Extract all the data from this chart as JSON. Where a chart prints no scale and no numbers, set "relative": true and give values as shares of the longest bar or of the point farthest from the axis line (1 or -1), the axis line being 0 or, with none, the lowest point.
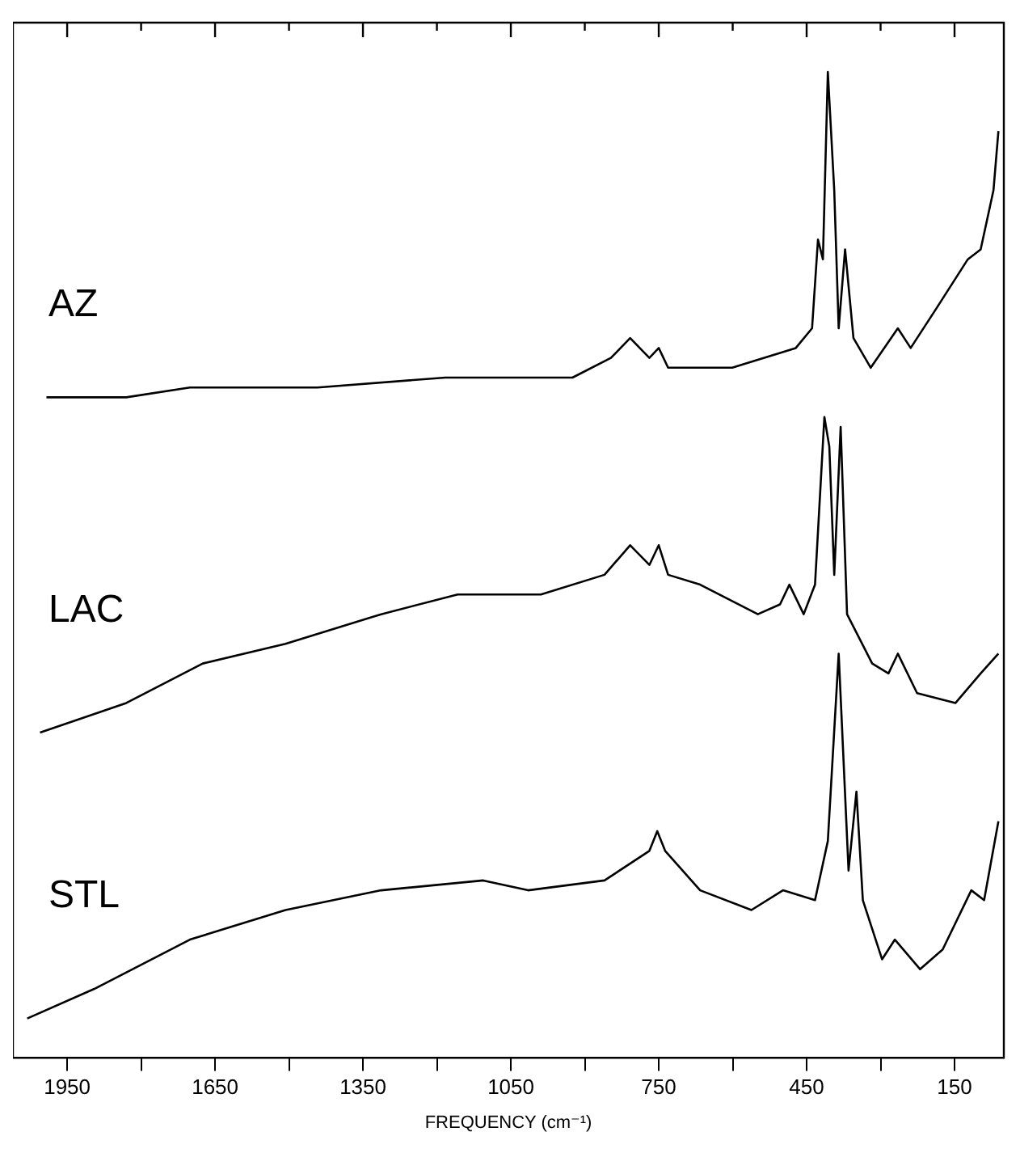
{
  "chart_data": {
    "type": "line",
    "relative": true,
    "xlabel": "FREQUENCY (cm⁻¹)",
    "xlim": [
      2060,
      50
    ],
    "xticks": [
      1950,
      {
        "value": 1800,
        "label": null
      },
      1650,
      {
        "value": 1500,
        "label": null
      },
      1350,
      {
        "value": 1200,
        "label": null
      },
      1050,
      {
        "value": 900,
        "label": null
      },
      750,
      {
        "value": 600,
        "label": null
      },
      450,
      {
        "value": 300,
        "label": null
      },
      150
    ],
    "grid": false,
    "legend": false,
    "marker": "none",
    "line_style": "solid",
    "series": [
      {
        "name": "AZ",
        "color": "#000000",
        "x": [
          1992,
          1830,
          1701,
          1442,
          1183,
          925,
          847,
          808,
          769,
          750,
          731,
          601,
          472,
          439,
          427,
          417,
          407,
          394,
          385,
          372,
          355,
          320,
          265,
          239,
          187,
          123,
          97,
          71,
          61
        ],
        "values": [
          0.67,
          0.67,
          0.68,
          0.68,
          0.69,
          0.69,
          0.71,
          0.73,
          0.71,
          0.72,
          0.7,
          0.7,
          0.72,
          0.74,
          0.83,
          0.81,
          1.0,
          0.88,
          0.74,
          0.82,
          0.73,
          0.7,
          0.74,
          0.72,
          0.76,
          0.81,
          0.82,
          0.88,
          0.94
        ]
      },
      {
        "name": "LAC",
        "color": "#000000",
        "x": [
          2005,
          1830,
          1675,
          1507,
          1313,
          1158,
          989,
          860,
          808,
          769,
          750,
          731,
          666,
          549,
          504,
          485,
          456,
          433,
          414,
          404,
          394,
          381,
          368,
          317,
          284,
          265,
          226,
          148,
          97,
          61
        ],
        "values": [
          0.33,
          0.36,
          0.4,
          0.42,
          0.45,
          0.47,
          0.47,
          0.49,
          0.52,
          0.5,
          0.52,
          0.49,
          0.48,
          0.45,
          0.46,
          0.48,
          0.45,
          0.48,
          0.65,
          0.62,
          0.49,
          0.64,
          0.45,
          0.4,
          0.39,
          0.41,
          0.37,
          0.36,
          0.39,
          0.41
        ]
      },
      {
        "name": "STL",
        "color": "#000000",
        "x": [
          2031,
          1895,
          1701,
          1507,
          1313,
          1106,
          1015,
          860,
          769,
          753,
          737,
          666,
          562,
          498,
          433,
          407,
          385,
          365,
          349,
          336,
          297,
          271,
          220,
          174,
          116,
          90,
          61
        ],
        "values": [
          0.04,
          0.07,
          0.12,
          0.15,
          0.17,
          0.18,
          0.17,
          0.18,
          0.21,
          0.23,
          0.21,
          0.17,
          0.15,
          0.17,
          0.16,
          0.22,
          0.41,
          0.19,
          0.27,
          0.16,
          0.1,
          0.12,
          0.09,
          0.11,
          0.17,
          0.16,
          0.24
        ]
      }
    ]
  }
}
